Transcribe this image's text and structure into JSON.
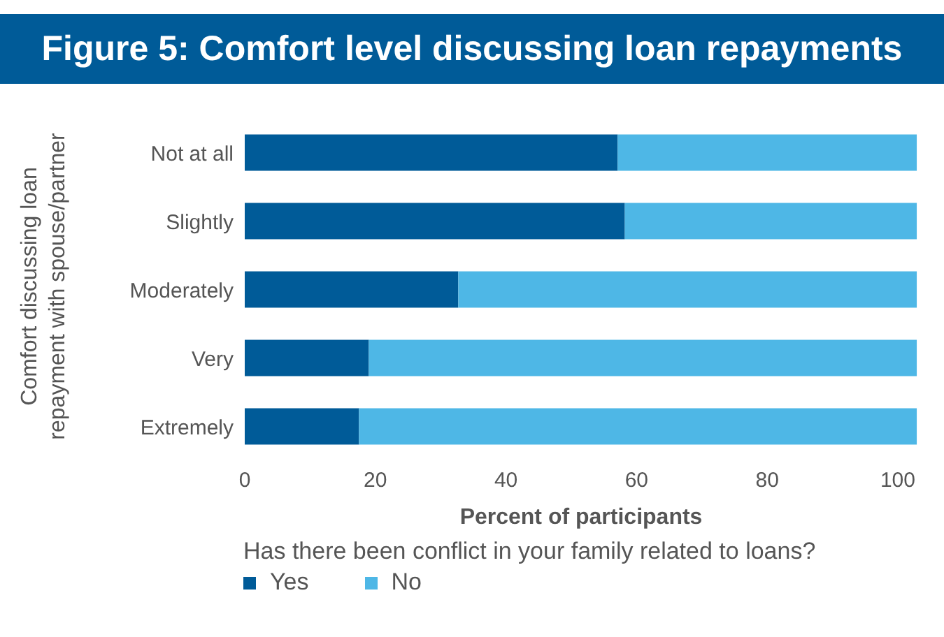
{
  "chart_data": {
    "type": "bar",
    "orientation": "horizontal",
    "stacked": true,
    "title": "Figure 5: Comfort level discussing loan repayments",
    "categories": [
      "Not at all",
      "Slightly",
      "Moderately",
      "Very",
      "Extremely"
    ],
    "series": [
      {
        "name": "Yes",
        "color": "#005b98",
        "values": [
          57.1,
          58.2,
          32.7,
          19.0,
          17.5
        ]
      },
      {
        "name": "No",
        "color": "#4eb7e6",
        "values": [
          45.8,
          44.7,
          70.2,
          83.9,
          85.4
        ]
      }
    ],
    "xlabel": "Percent of participants",
    "ylabel": "Comfort discussing loan repayment with spouse/partner",
    "legend_title": "Has there been conflict in your family related to loans?",
    "xlim": [
      0,
      103
    ],
    "xticks": [
      0,
      20,
      40,
      60,
      80,
      100
    ],
    "legend": "bottom"
  }
}
